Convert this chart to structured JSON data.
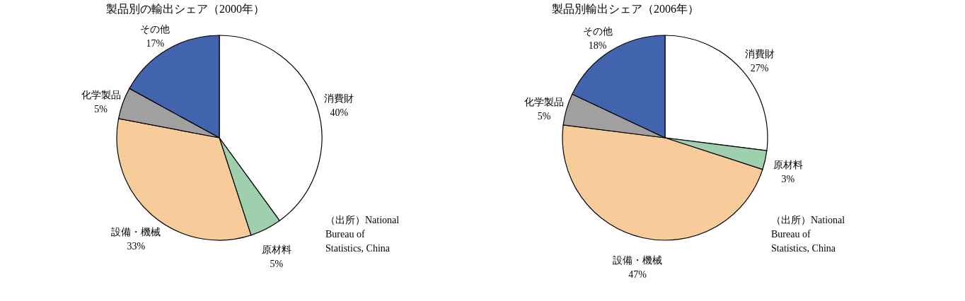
{
  "chart_data": [
    {
      "type": "pie",
      "title": "製品別の輸出シェア（2000年）",
      "categories": [
        "消費財",
        "原材料",
        "設備・機械",
        "化学製品",
        "その他"
      ],
      "values": [
        40,
        5,
        33,
        5,
        17
      ],
      "value_labels": [
        "40%",
        "5%",
        "33%",
        "5%",
        "17%"
      ],
      "colors": [
        "#ffffff",
        "#9fd0ae",
        "#f8cb9a",
        "#a0a0a0",
        "#4263ae"
      ],
      "legend": false,
      "annotations": [
        "（出所）National Bureau of Statistics, China"
      ]
    },
    {
      "type": "pie",
      "title": "製品別輸出シェア（2006年）",
      "categories": [
        "消費財",
        "原材料",
        "設備・機械",
        "化学製品",
        "その他"
      ],
      "values": [
        27,
        3,
        47,
        5,
        18
      ],
      "value_labels": [
        "27%",
        "3%",
        "47%",
        "5%",
        "18%"
      ],
      "colors": [
        "#ffffff",
        "#9fd0ae",
        "#f8cb9a",
        "#a0a0a0",
        "#4263ae"
      ],
      "legend": false,
      "annotations": [
        "（出所）National Bureau of Statistics, China"
      ]
    }
  ]
}
